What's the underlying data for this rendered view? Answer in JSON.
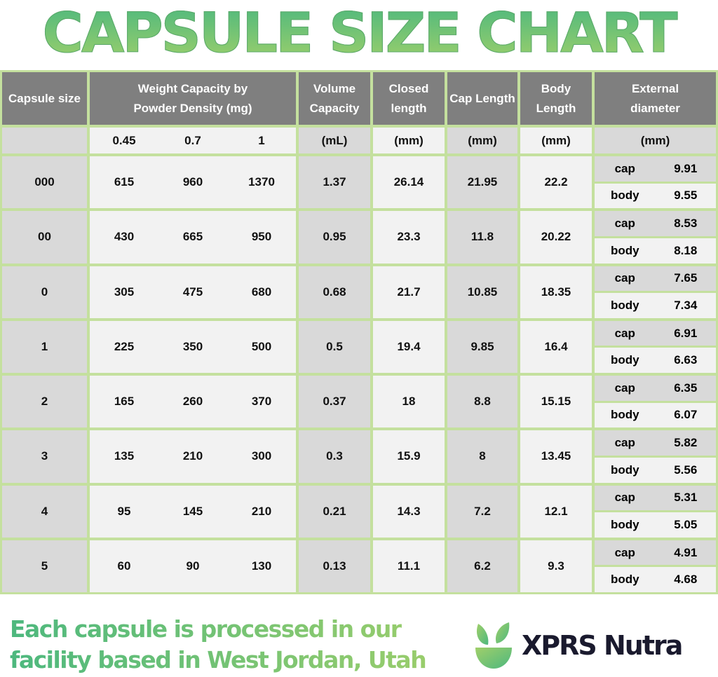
{
  "title": "CAPSULE SIZE CHART",
  "headers": {
    "size": "Capsule size",
    "weight": "Weight Capacity by Powder Density (mg)",
    "volume": "Volume Capacity",
    "closed": "Closed length",
    "cap": "Cap Length",
    "body": "Body Length",
    "ext": "External diameter"
  },
  "units": {
    "d1": "0.45",
    "d2": "0.7",
    "d3": "1",
    "volume": "(mL)",
    "closed": "(mm)",
    "cap": "(mm)",
    "body": "(mm)",
    "ext": "(mm)"
  },
  "labels": {
    "cap": "cap",
    "body": "body"
  },
  "rows": [
    {
      "size": "000",
      "w1": "615",
      "w2": "960",
      "w3": "1370",
      "vol": "1.37",
      "closed": "26.14",
      "cap": "21.95",
      "body": "22.2",
      "ext_cap": "9.91",
      "ext_body": "9.55"
    },
    {
      "size": "00",
      "w1": "430",
      "w2": "665",
      "w3": "950",
      "vol": "0.95",
      "closed": "23.3",
      "cap": "11.8",
      "body": "20.22",
      "ext_cap": "8.53",
      "ext_body": "8.18"
    },
    {
      "size": "0",
      "w1": "305",
      "w2": "475",
      "w3": "680",
      "vol": "0.68",
      "closed": "21.7",
      "cap": "10.85",
      "body": "18.35",
      "ext_cap": "7.65",
      "ext_body": "7.34"
    },
    {
      "size": "1",
      "w1": "225",
      "w2": "350",
      "w3": "500",
      "vol": "0.5",
      "closed": "19.4",
      "cap": "9.85",
      "body": "16.4",
      "ext_cap": "6.91",
      "ext_body": "6.63"
    },
    {
      "size": "2",
      "w1": "165",
      "w2": "260",
      "w3": "370",
      "vol": "0.37",
      "closed": "18",
      "cap": "8.8",
      "body": "15.15",
      "ext_cap": "6.35",
      "ext_body": "6.07"
    },
    {
      "size": "3",
      "w1": "135",
      "w2": "210",
      "w3": "300",
      "vol": "0.3",
      "closed": "15.9",
      "cap": "8",
      "body": "13.45",
      "ext_cap": "5.82",
      "ext_body": "5.56"
    },
    {
      "size": "4",
      "w1": "95",
      "w2": "145",
      "w3": "210",
      "vol": "0.21",
      "closed": "14.3",
      "cap": "7.2",
      "body": "12.1",
      "ext_cap": "5.31",
      "ext_body": "5.05"
    },
    {
      "size": "5",
      "w1": "60",
      "w2": "90",
      "w3": "130",
      "vol": "0.13",
      "closed": "11.1",
      "cap": "6.2",
      "body": "9.3",
      "ext_cap": "4.91",
      "ext_body": "4.68"
    }
  ],
  "footer": {
    "line1": "Each capsule is processed in our",
    "line2": "facility based in West Jordan, Utah"
  },
  "brand": "XPRS Nutra",
  "colors": {
    "border": "#c4e09e",
    "header": "#7f7f7f",
    "gray_cell": "#d9d9d9",
    "light_cell": "#f2f2f2",
    "green_start": "#4db87e",
    "green_end": "#a0cf6a",
    "brand_text": "#1a1a2e"
  }
}
